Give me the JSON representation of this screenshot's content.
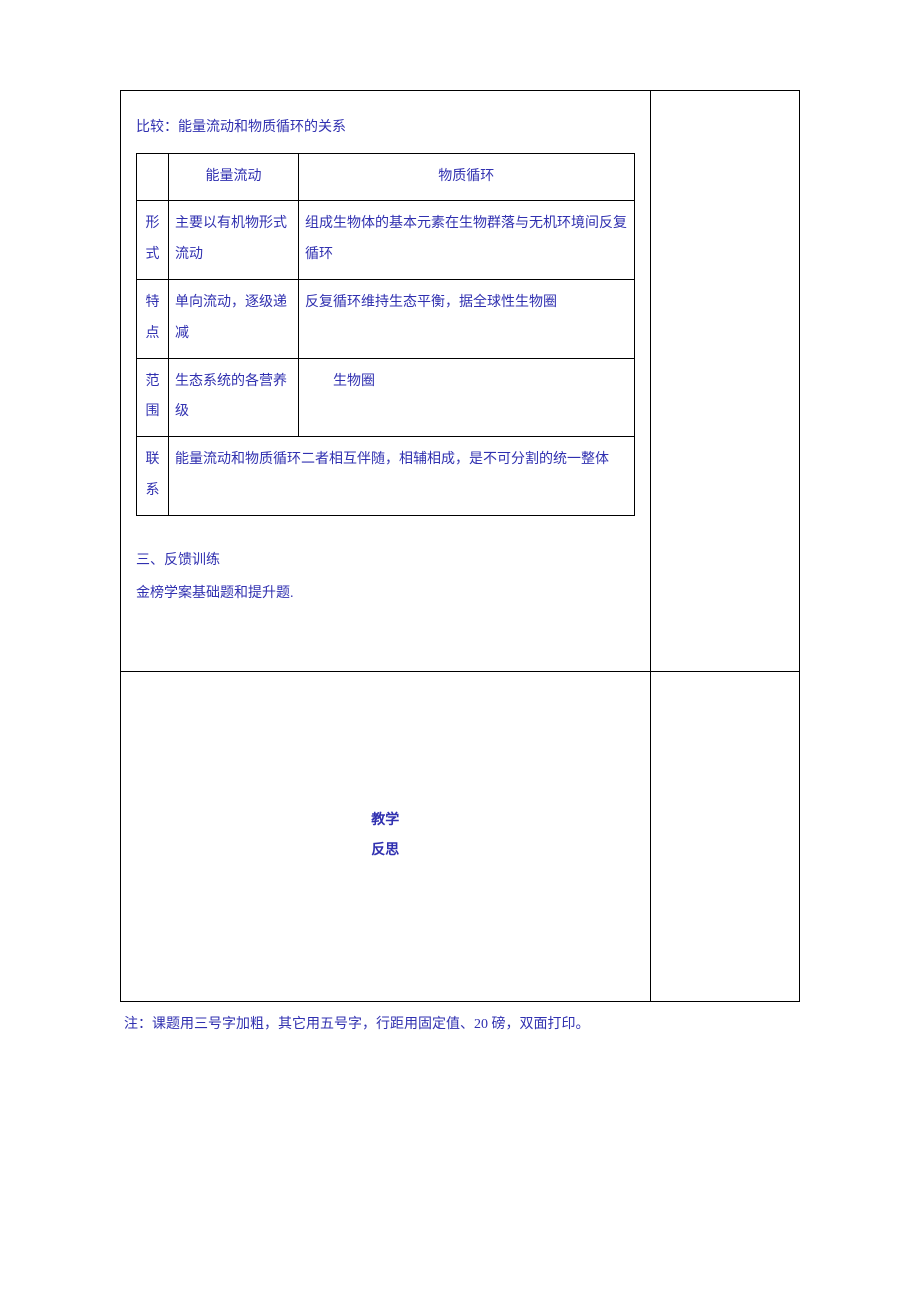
{
  "colors": {
    "text": "#3030b0",
    "border": "#000000",
    "background": "#ffffff"
  },
  "typography": {
    "body_fontsize": 14,
    "body_family": "SimSun",
    "line_height": 2.4,
    "bold_labels": true
  },
  "comparison": {
    "title": "比较：能量流动和物质循环的关系",
    "header_blank": "",
    "header_energy": "能量流动",
    "header_matter": "物质循环",
    "rows": [
      {
        "label": "形式",
        "energy": "主要以有机物形式流动",
        "matter": "组成生物体的基本元素在生物群落与无机环境间反复循环"
      },
      {
        "label": "特点",
        "energy": "单向流动，逐级递减",
        "matter": "反复循环维持生态平衡，据全球性生物圈"
      },
      {
        "label": "范围",
        "energy": "生态系统的各营养级",
        "matter": "　生物圈"
      },
      {
        "label": "联系",
        "merged": "能量流动和物质循环二者相互伴随，相辅相成，是不可分割的统一整体"
      }
    ]
  },
  "section3": {
    "heading": "三、反馈训练",
    "body": "金榜学案基础题和提升题."
  },
  "reflection": {
    "label_line1": "教学",
    "label_line2": "反思"
  },
  "footnote": "注：课题用三号字加粗，其它用五号字，行距用固定值、20 磅，双面打印。"
}
